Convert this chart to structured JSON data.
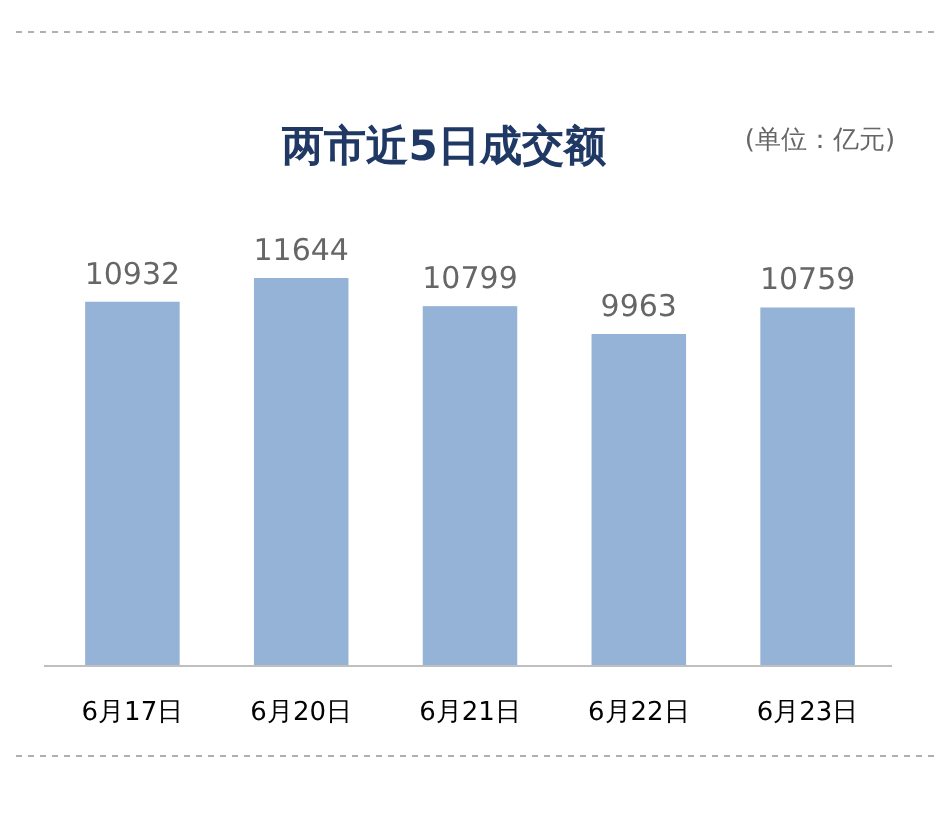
{
  "chart_data": {
    "type": "bar",
    "title": "两市近5日成交额",
    "annotations": [
      "(单位：亿元)"
    ],
    "categories": [
      "6月17日",
      "6月20日",
      "6月21日",
      "6月22日",
      "6月23日"
    ],
    "values": [
      10932,
      11644,
      10799,
      9963,
      10759
    ],
    "color": "#95b3d7",
    "data_labels": true
  }
}
